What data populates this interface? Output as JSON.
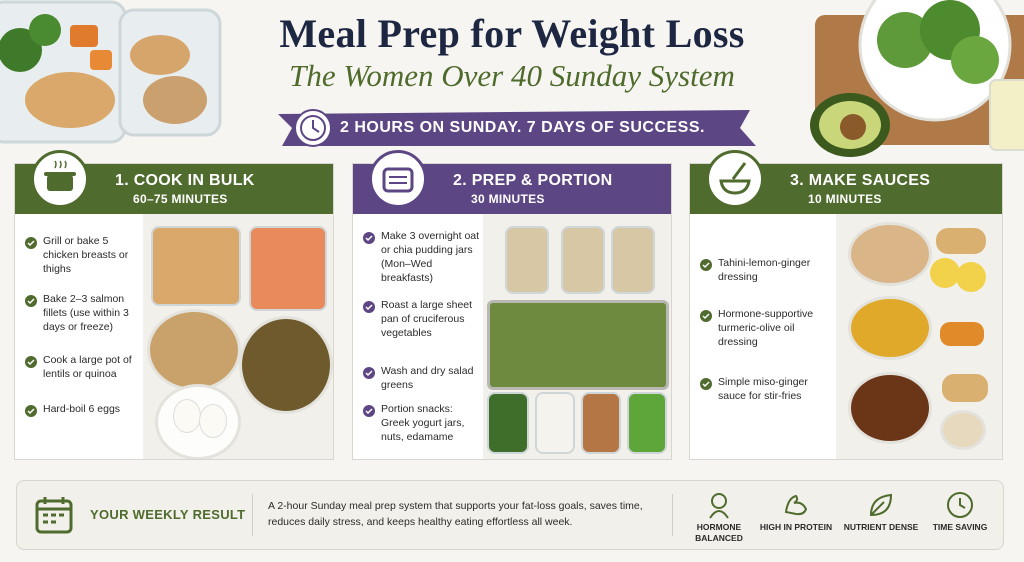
{
  "header": {
    "title": "Meal Prep for Weight Loss",
    "subtitle": "The Women Over 40 Sunday System",
    "banner": "2 HOURS ON SUNDAY. 7 DAYS OF SUCCESS."
  },
  "sections": [
    {
      "title": "1. COOK IN BULK",
      "time": "60–75 MINUTES",
      "items": [
        "Grill or bake 5 chicken breasts or thighs",
        "Bake 2–3 salmon fillets (use within 3 days or freeze)",
        "Cook a large pot of lentils or quinoa",
        "Hard-boil 6 eggs"
      ]
    },
    {
      "title": "2. PREP & PORTION",
      "time": "30 MINUTES",
      "items": [
        "Make 3 overnight oat or chia pudding jars (Mon–Wed breakfasts)",
        "Roast a large sheet pan of cruciferous vegetables",
        "Wash and dry salad greens",
        "Portion snacks: Greek yogurt jars, nuts, edamame"
      ]
    },
    {
      "title": "3. MAKE SAUCES",
      "time": "10 MINUTES",
      "items": [
        "Tahini-lemon-ginger dressing",
        "Hormone-supportive turmeric-olive oil dressing",
        "Simple miso-ginger sauce for stir-fries"
      ]
    }
  ],
  "footer": {
    "label": "YOUR WEEKLY RESULT",
    "description": "A 2-hour Sunday meal prep system that supports your fat-loss goals, saves time, reduces daily stress, and keeps healthy eating effortless all week.",
    "badges": [
      "HORMONE BALANCED",
      "HIGH IN PROTEIN",
      "NUTRIENT DENSE",
      "TIME SAVING"
    ]
  }
}
